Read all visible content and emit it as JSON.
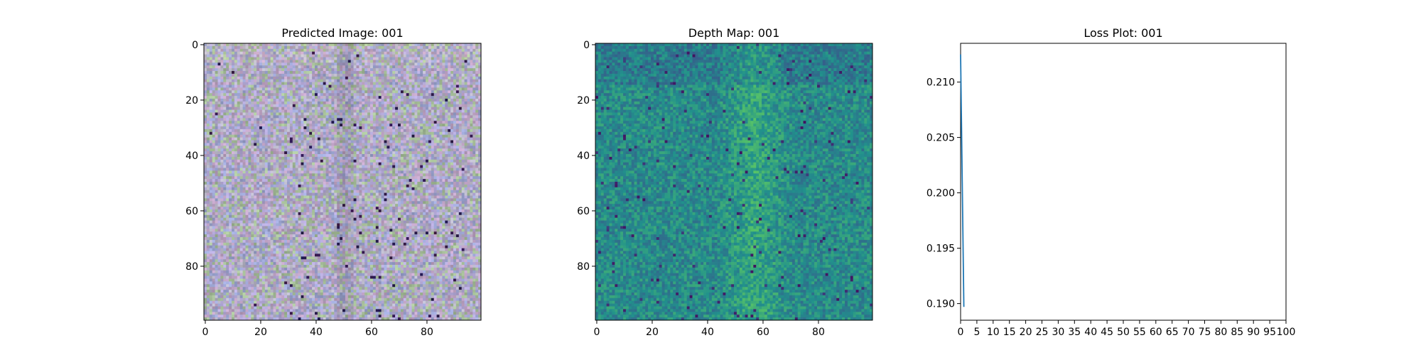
{
  "chart_data": [
    {
      "type": "heatmap",
      "title": "Predicted Image: 001",
      "x_ticks": [
        "0",
        "20",
        "40",
        "60",
        "80"
      ],
      "y_ticks": [
        "0",
        "20",
        "40",
        "60",
        "80"
      ],
      "x_tick_values": [
        0,
        20,
        40,
        60,
        80
      ],
      "y_tick_values": [
        0,
        20,
        40,
        60,
        80
      ],
      "extent": [
        0,
        100
      ],
      "colors": [
        "#b4a9d8",
        "#a9c29c",
        "#c2a6c8",
        "#9fa8d6",
        "#b9b7c8"
      ]
    },
    {
      "type": "heatmap",
      "title": "Depth Map: 001",
      "x_ticks": [
        "0",
        "20",
        "40",
        "60",
        "80"
      ],
      "y_ticks": [
        "0",
        "20",
        "40",
        "60",
        "80"
      ],
      "x_tick_values": [
        0,
        20,
        40,
        60,
        80
      ],
      "y_tick_values": [
        0,
        20,
        40,
        60,
        80
      ],
      "extent": [
        0,
        100
      ],
      "colormap": "viridis"
    },
    {
      "type": "line",
      "title": "Loss Plot: 001",
      "x": [
        0,
        1
      ],
      "series": [
        {
          "values": [
            0.2125,
            0.1897
          ],
          "color": "#1f77b4"
        }
      ],
      "xlim": [
        0,
        100
      ],
      "ylim": [
        0.1885,
        0.2135
      ],
      "x_ticks": [
        "0",
        "5",
        "10",
        "15",
        "20",
        "25",
        "30",
        "35",
        "40",
        "45",
        "50",
        "55",
        "60",
        "65",
        "70",
        "75",
        "80",
        "85",
        "90",
        "95",
        "100"
      ],
      "x_tick_values": [
        0,
        5,
        10,
        15,
        20,
        25,
        30,
        35,
        40,
        45,
        50,
        55,
        60,
        65,
        70,
        75,
        80,
        85,
        90,
        95,
        100
      ],
      "y_ticks": [
        "0.190",
        "0.195",
        "0.200",
        "0.205",
        "0.210"
      ],
      "y_tick_values": [
        0.19,
        0.195,
        0.2,
        0.205,
        0.21
      ]
    }
  ]
}
